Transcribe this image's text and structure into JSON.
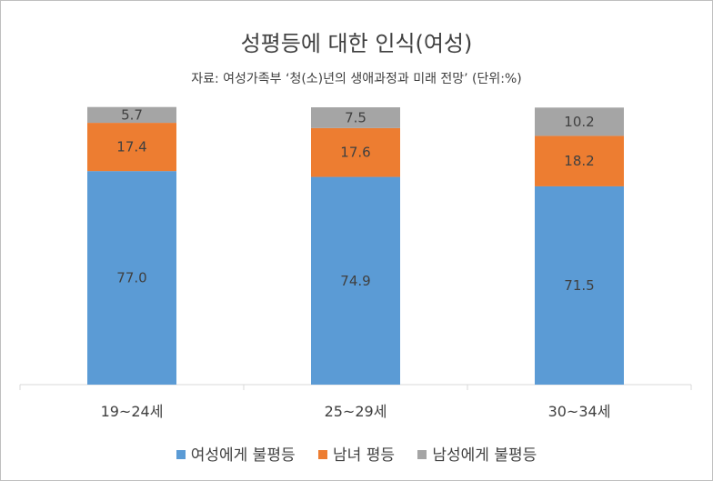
{
  "chart_data": {
    "type": "bar",
    "stacked": true,
    "title": "성평등에 대한 인식(여성)",
    "subtitle": "자료: 여성가족부 ‘청(소)년의 생애과정과 미래 전망’  (단위:%)",
    "categories": [
      "19~24세",
      "25~29세",
      "30~34세"
    ],
    "series": [
      {
        "name": "여성에게 불평등",
        "values": [
          77.0,
          74.9,
          71.5
        ],
        "color": "#5b9bd5"
      },
      {
        "name": "남녀 평등",
        "values": [
          17.4,
          17.6,
          18.2
        ],
        "color": "#ed7d31"
      },
      {
        "name": "남성에게 불평등",
        "values": [
          5.7,
          7.5,
          10.2
        ],
        "color": "#a5a5a5"
      }
    ],
    "ylim": [
      0,
      100
    ],
    "grid": false,
    "legend_position": "bottom"
  }
}
